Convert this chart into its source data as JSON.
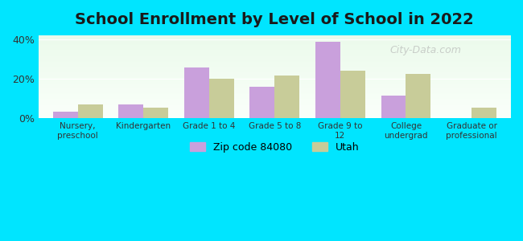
{
  "title": "School Enrollment by Level of School in 2022",
  "categories": [
    "Nursery,\npreschool",
    "Kindergarten",
    "Grade 1 to 4",
    "Grade 5 to 8",
    "Grade 9 to\n12",
    "College\nundergrad",
    "Graduate or\nprofessional"
  ],
  "zip_values": [
    3.5,
    7.0,
    25.5,
    16.0,
    38.5,
    11.5,
    0.0
  ],
  "utah_values": [
    7.0,
    5.5,
    20.0,
    21.5,
    24.0,
    22.5,
    5.5
  ],
  "zip_color": "#c9a0dc",
  "utah_color": "#c8cc99",
  "background_outer": "#00e5ff",
  "ylim": [
    0,
    42
  ],
  "yticks": [
    0,
    20,
    40
  ],
  "ytick_labels": [
    "0%",
    "20%",
    "40%"
  ],
  "title_fontsize": 14,
  "legend_label_zip": "Zip code 84080",
  "legend_label_utah": "Utah",
  "bar_width": 0.38,
  "watermark": "City-Data.com"
}
